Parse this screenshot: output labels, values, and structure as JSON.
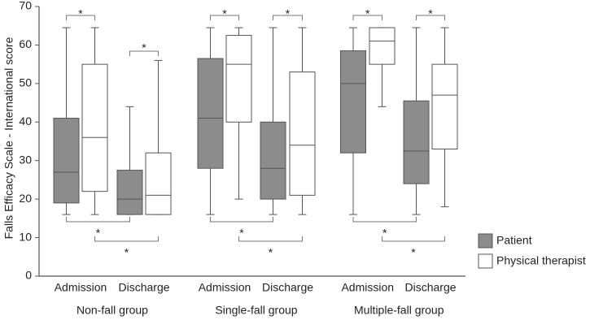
{
  "chart_data": {
    "type": "box",
    "y_label": "Falls Efficacy Scale - International score",
    "categories": [
      "Admission",
      "Discharge",
      "Admission",
      "Discharge",
      "Admission",
      "Discharge"
    ],
    "groups": [
      "Non-fall group",
      "Single-fall group",
      "Multiple-fall group"
    ],
    "ylim": [
      0,
      70
    ],
    "yticks": [
      0,
      10,
      20,
      30,
      40,
      50,
      60,
      70
    ],
    "grid": false,
    "legend": "lower right",
    "series": [
      {
        "name": "Patient",
        "color": "#8c8c8c",
        "boxes": [
          {
            "min": 16,
            "q1": 19,
            "median": 27,
            "q3": 41,
            "max": 64.5
          },
          {
            "min": 16,
            "q1": 16,
            "median": 20,
            "q3": 27.5,
            "max": 44
          },
          {
            "min": 16,
            "q1": 28,
            "median": 41,
            "q3": 56.5,
            "max": 64.5
          },
          {
            "min": 16,
            "q1": 20,
            "median": 28,
            "q3": 40,
            "max": 64.5
          },
          {
            "min": 16,
            "q1": 32,
            "median": 50,
            "q3": 58.5,
            "max": 64.5
          },
          {
            "min": 16,
            "q1": 24,
            "median": 32.5,
            "q3": 45.5,
            "max": 64.5
          }
        ]
      },
      {
        "name": "Physical therapist",
        "color": "#ffffff",
        "boxes": [
          {
            "min": 16,
            "q1": 22,
            "median": 36,
            "q3": 55,
            "max": 64.5
          },
          {
            "min": 16,
            "q1": 16,
            "median": 21,
            "q3": 32,
            "max": 56
          },
          {
            "min": 20,
            "q1": 40,
            "median": 55,
            "q3": 62.5,
            "max": 64.5
          },
          {
            "min": 16,
            "q1": 21,
            "median": 34,
            "q3": 53,
            "max": 64.5
          },
          {
            "min": 44,
            "q1": 55,
            "median": 61,
            "q3": 64.5,
            "max": 64.5
          },
          {
            "min": 18,
            "q1": 33,
            "median": 47,
            "q3": 55,
            "max": 64.5
          }
        ]
      }
    ],
    "annotations": [
      "*",
      "*",
      "*",
      "*",
      "*",
      "*",
      "*",
      "*",
      "*",
      "*",
      "*",
      "*"
    ]
  }
}
